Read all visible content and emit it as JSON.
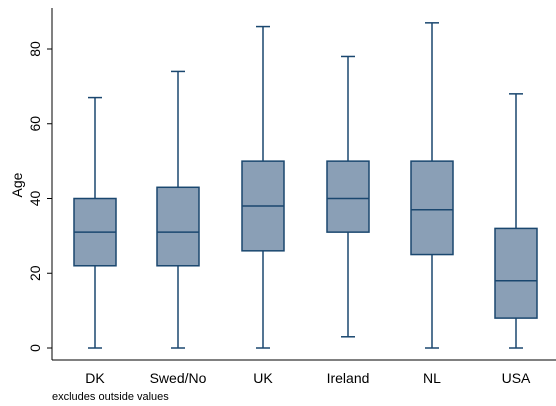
{
  "chart_data": {
    "type": "box",
    "ylabel": "Age",
    "ylim": [
      0,
      90
    ],
    "yticks": [
      0,
      20,
      40,
      60,
      80
    ],
    "grid": false,
    "note": "excludes outside values",
    "categories": [
      "DK",
      "Swed/No",
      "UK",
      "Ireland",
      "NL",
      "USA"
    ],
    "boxes": [
      {
        "category": "DK",
        "min": 0,
        "q1": 22,
        "median": 31,
        "q3": 40,
        "max": 67
      },
      {
        "category": "Swed/No",
        "min": 0,
        "q1": 22,
        "median": 31,
        "q3": 43,
        "max": 74
      },
      {
        "category": "UK",
        "min": 0,
        "q1": 26,
        "median": 38,
        "q3": 50,
        "max": 86
      },
      {
        "category": "Ireland",
        "min": 3,
        "q1": 31,
        "median": 40,
        "q3": 50,
        "max": 78
      },
      {
        "category": "NL",
        "min": 0,
        "q1": 25,
        "median": 37,
        "q3": 50,
        "max": 87
      },
      {
        "category": "USA",
        "min": 0,
        "q1": 8,
        "median": 18,
        "q3": 32,
        "max": 68
      }
    ],
    "colors": {
      "box_fill": "#8a9fb6",
      "line": "#1a476f",
      "axis": "#000000"
    }
  }
}
